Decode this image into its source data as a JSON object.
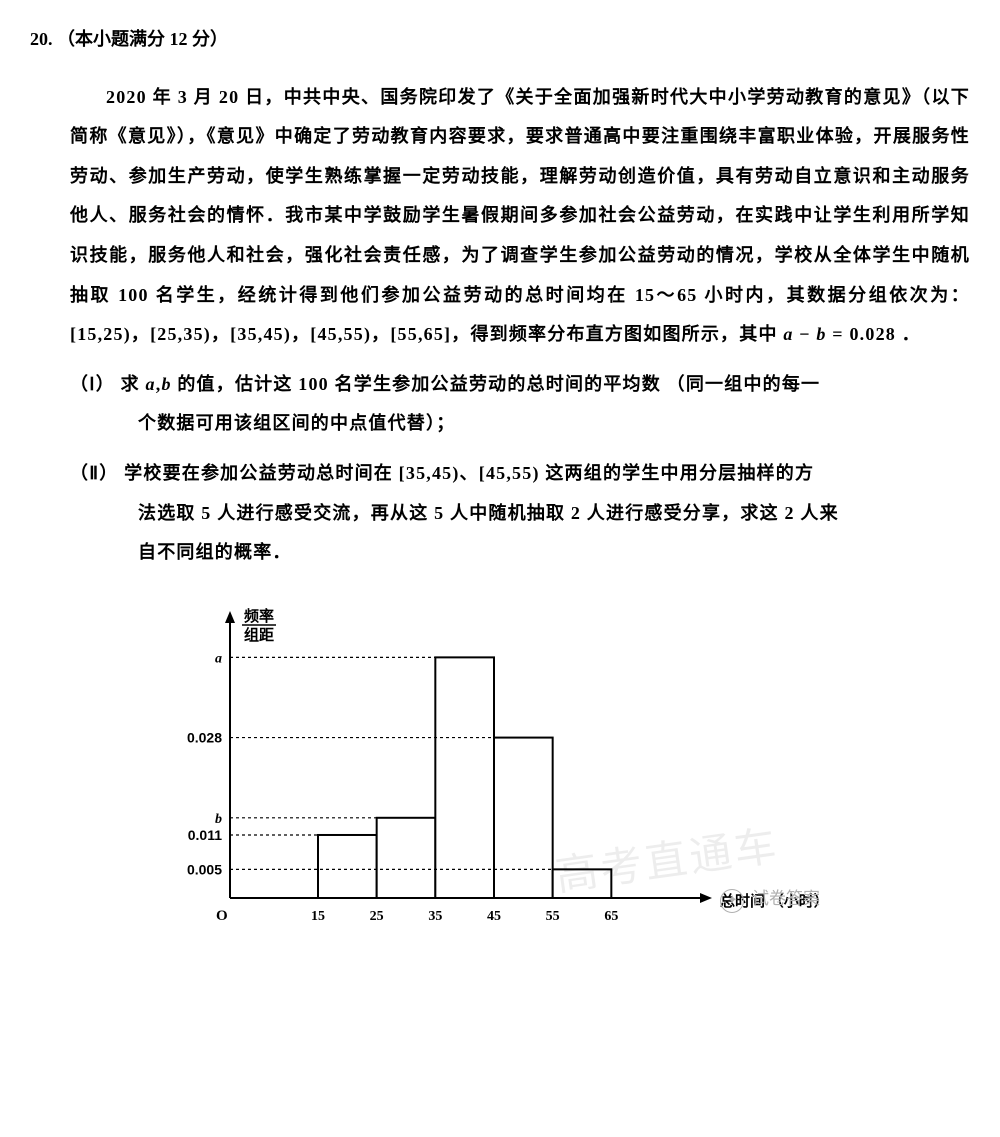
{
  "header": {
    "number": "20.",
    "points": "（本小题满分 12 分）"
  },
  "paragraph": {
    "p1": "2020 年 3 月 20 日，中共中央、国务院印发了《关于全面加强新时代大中小学劳动教育的意见》（以下简称《意见》），《意见》中确定了劳动教育内容要求，要求普通高中要注重围绕丰富职业体验，开展服务性劳动、参加生产劳动，使学生熟练掌握一定劳动技能，理解劳动创造价值，具有劳动自立意识和主动服务他人、服务社会的情怀．我市某中学鼓励学生暑假期间多参加社会公益劳动，在实践中让学生利用所学知识技能，服务他人和社会，强化社会责任感，为了调查学生参加公益劳动的情况，学校从全体学生中随机抽取 100 名学生，经统计得到他们参加公益劳动的总时间均在 15～65 小时内，其数据分组依次为：[15,25)，[25,35)，[35,45)，[45,55)，[55,65]，得到频率分布直方图如图所示，其中",
    "eq1_a": "a",
    "eq1_minus": " − ",
    "eq1_b": "b",
    "eq1_rest": " = 0.028 ．"
  },
  "parts": {
    "I_label": "（Ⅰ）",
    "I_line1a": "求 ",
    "I_a": "a",
    "I_comma": ",",
    "I_b": "b",
    "I_line1b": " 的值，估计这 100 名学生参加公益劳动的总时间的平均数 （同一组中的每一",
    "I_line2": "个数据可用该组区间的中点值代替）；",
    "II_label": "（Ⅱ）",
    "II_line1": "学校要在参加公益劳动总时间在 [35,45)、[45,55) 这两组的学生中用分层抽样的方",
    "II_line2": "法选取 5 人进行感受交流，再从这 5 人中随机抽取 2 人进行感受分享，求这 2 人来",
    "II_line3": "自不同组的概率．"
  },
  "chart": {
    "type": "histogram",
    "y_label_top": "频率",
    "y_label_bot": "组距",
    "x_label": "总时间 （小时）",
    "origin": "O",
    "xlim": [
      0,
      75
    ],
    "ylim": [
      0,
      0.048
    ],
    "x_ticks": [
      15,
      25,
      35,
      45,
      55,
      65
    ],
    "y_ticks": {
      "0.005": 0.005,
      "0.011": 0.011,
      "b": 0.014,
      "0.028": 0.028,
      "a": 0.042
    },
    "bar_edges": [
      15,
      25,
      35,
      45,
      55,
      65
    ],
    "bar_heights": [
      0.011,
      0.014,
      0.042,
      0.028,
      0.005
    ],
    "bar_fill": "#ffffff",
    "bar_stroke": "#000000",
    "axis_color": "#000000",
    "grid_dash": "3,3",
    "background_color": "#ffffff",
    "tick_fontsize": 14,
    "label_fontsize": 15
  },
  "watermarks": {
    "a": "高考直通车",
    "b": "试卷答案"
  }
}
